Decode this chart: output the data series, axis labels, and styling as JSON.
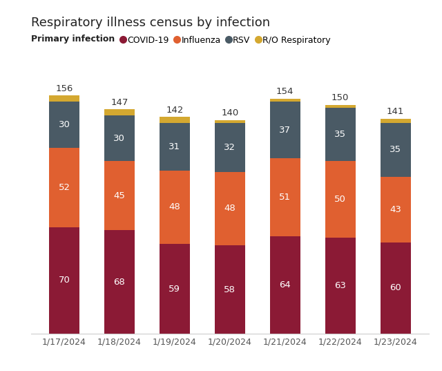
{
  "title": "Respiratory illness census by infection",
  "legend_title": "Primary infection",
  "categories": [
    "1/17/2024",
    "1/18/2024",
    "1/19/2024",
    "1/20/2024",
    "1/21/2024",
    "1/22/2024",
    "1/23/2024"
  ],
  "series": {
    "COVID-19": [
      70,
      68,
      59,
      58,
      64,
      63,
      60
    ],
    "Influenza": [
      52,
      45,
      48,
      48,
      51,
      50,
      43
    ],
    "RSV": [
      30,
      30,
      31,
      32,
      37,
      35,
      35
    ],
    "R/O Respiratory": [
      4,
      4,
      4,
      2,
      2,
      2,
      3
    ]
  },
  "totals": [
    156,
    147,
    142,
    140,
    154,
    150,
    141
  ],
  "colors": {
    "COVID-19": "#8B1A35",
    "Influenza": "#E06030",
    "RSV": "#4A5A65",
    "R/O Respiratory": "#D4A830"
  },
  "background_color": "#FFFFFF",
  "bar_width": 0.55,
  "ylim": [
    0,
    170
  ],
  "title_fontsize": 13,
  "label_fontsize": 9.5,
  "tick_fontsize": 9,
  "legend_fontsize": 9
}
